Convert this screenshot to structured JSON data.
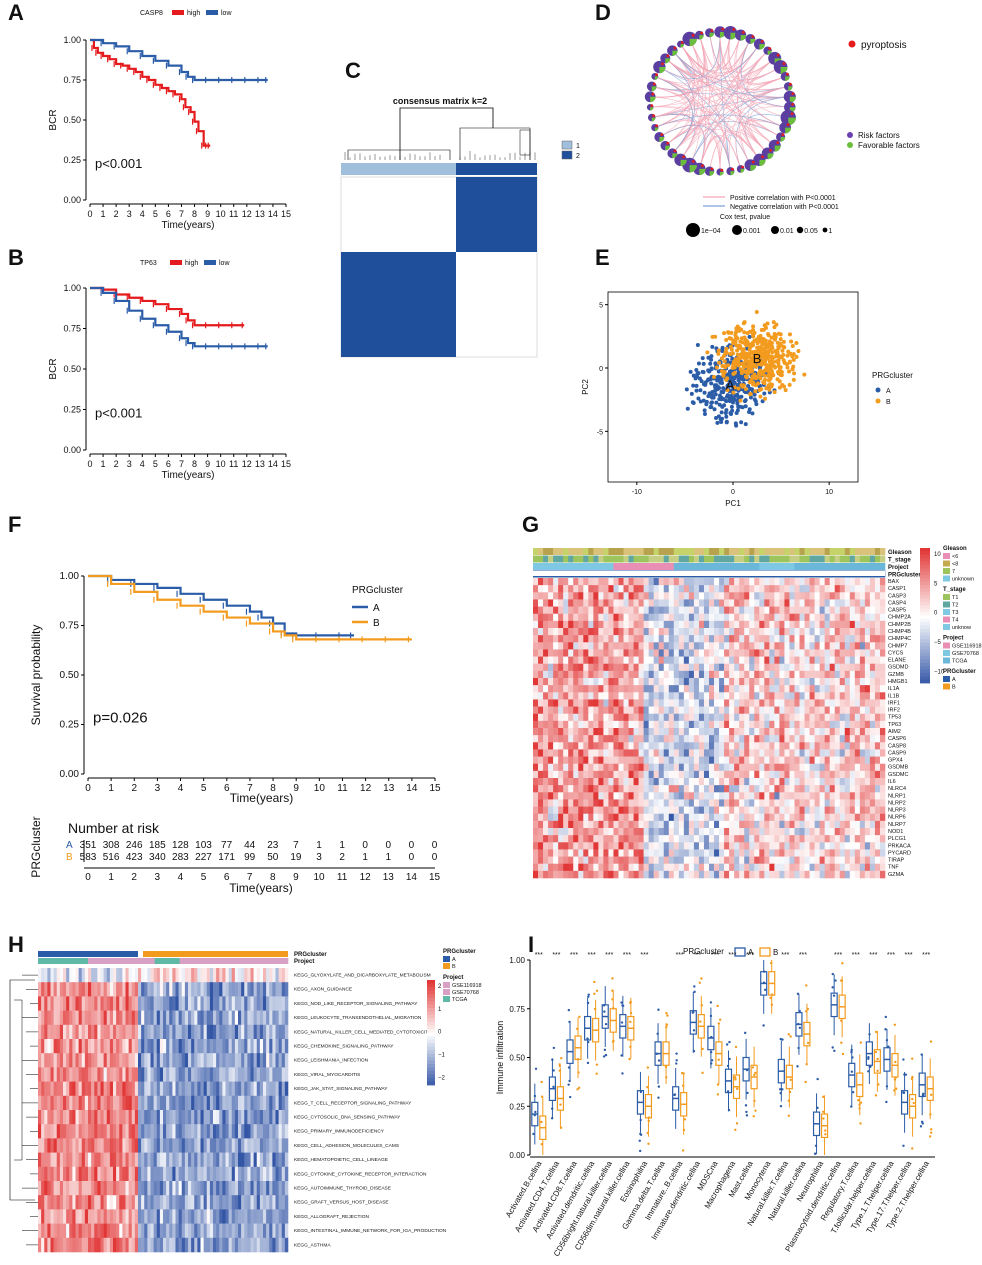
{
  "panel_labels": {
    "A": "A",
    "B": "B",
    "C": "C",
    "D": "D",
    "E": "E",
    "F": "F",
    "G": "G",
    "H": "H",
    "I": "I"
  },
  "colors": {
    "red": "#e41a1c",
    "blue": "#2b5ca8",
    "orange": "#f39b1e",
    "lightblue": "#9fbfdc",
    "darkblue": "#1f4e9b"
  },
  "chart_data": [
    {
      "id": "A",
      "type": "line",
      "title": "",
      "legend_title": "CASP8",
      "legend": [
        "high",
        "low"
      ],
      "xlabel": "Time(years)",
      "ylabel": "BCR",
      "xticks": [
        "0",
        "1",
        "2",
        "3",
        "4",
        "5",
        "6",
        "7",
        "8",
        "9",
        "10",
        "11",
        "12",
        "13",
        "14",
        "15"
      ],
      "yticks": [
        "0.00",
        "0.25",
        "0.50",
        "0.75",
        "1.00"
      ],
      "xlim": [
        0,
        15
      ],
      "ylim": [
        0,
        1
      ],
      "annotation": "p<0.001",
      "series": [
        {
          "name": "high",
          "x": [
            0,
            0.3,
            0.6,
            1,
            1.5,
            2,
            2.5,
            3,
            3.5,
            4,
            4.5,
            5,
            5.5,
            6,
            6.5,
            7,
            7.3,
            7.7,
            8,
            8.3,
            8.7,
            9,
            9.2
          ],
          "y": [
            1,
            0.95,
            0.92,
            0.9,
            0.88,
            0.85,
            0.84,
            0.82,
            0.8,
            0.77,
            0.75,
            0.72,
            0.7,
            0.68,
            0.66,
            0.63,
            0.58,
            0.55,
            0.49,
            0.43,
            0.34,
            0.34,
            0.34
          ]
        },
        {
          "name": "low",
          "x": [
            0,
            1,
            2,
            3,
            4,
            5,
            6,
            7,
            7.5,
            8,
            9,
            10,
            11,
            12,
            13,
            13.6
          ],
          "y": [
            1,
            0.98,
            0.96,
            0.93,
            0.9,
            0.87,
            0.84,
            0.8,
            0.77,
            0.75,
            0.75,
            0.75,
            0.75,
            0.75,
            0.75,
            0.75
          ]
        }
      ]
    },
    {
      "id": "B",
      "type": "line",
      "title": "",
      "legend_title": "TP63",
      "legend": [
        "high",
        "low"
      ],
      "xlabel": "Time(years)",
      "ylabel": "BCR",
      "xticks": [
        "0",
        "1",
        "2",
        "3",
        "4",
        "5",
        "6",
        "7",
        "8",
        "9",
        "10",
        "11",
        "12",
        "13",
        "14",
        "15"
      ],
      "yticks": [
        "0.00",
        "0.25",
        "0.50",
        "0.75",
        "1.00"
      ],
      "xlim": [
        0,
        15
      ],
      "ylim": [
        0,
        1
      ],
      "annotation": "p<0.001",
      "series": [
        {
          "name": "high",
          "x": [
            0,
            1,
            2,
            3,
            4,
            5,
            6,
            7,
            7.5,
            8,
            9,
            10,
            11,
            11.8
          ],
          "y": [
            1,
            0.99,
            0.96,
            0.94,
            0.92,
            0.9,
            0.87,
            0.84,
            0.8,
            0.77,
            0.77,
            0.77,
            0.77,
            0.77
          ]
        },
        {
          "name": "low",
          "x": [
            0,
            1,
            2,
            3,
            4,
            5,
            6,
            7,
            7.5,
            8,
            9,
            10,
            11,
            12,
            13,
            13.6
          ],
          "y": [
            1,
            0.97,
            0.92,
            0.86,
            0.81,
            0.77,
            0.73,
            0.69,
            0.66,
            0.64,
            0.64,
            0.64,
            0.64,
            0.64,
            0.64,
            0.64
          ]
        }
      ]
    },
    {
      "id": "C",
      "type": "heatmap",
      "title": "consensus matrix k=2",
      "legend": [
        "1",
        "2"
      ]
    },
    {
      "id": "D",
      "type": "other",
      "legend": [
        "pyroptosis",
        "Risk factors",
        "Favorable factors",
        "Positive correlation with P<0.0001",
        "Negative correlation with P<0.0001"
      ],
      "size_legend_title": "Cox test, pvalue",
      "size_legend": [
        "1e−04",
        "0.001",
        "0.01",
        "0.05",
        "1"
      ]
    },
    {
      "id": "E",
      "type": "scatter",
      "xlabel": "PC1",
      "ylabel": "PC2",
      "xticks": [
        "-10",
        "0",
        "10"
      ],
      "yticks": [
        "-5",
        "0",
        "5"
      ],
      "xlim": [
        -13,
        13
      ],
      "ylim": [
        -9,
        6
      ],
      "legend_title": "PRGcluster",
      "legend": [
        "A",
        "B"
      ],
      "centroids": [
        {
          "label": "A",
          "x": -0.3,
          "y": -1.3
        },
        {
          "label": "B",
          "x": 2.5,
          "y": 0.8
        }
      ]
    },
    {
      "id": "F",
      "type": "line",
      "xlabel": "Time(years)",
      "ylabel": "Survival probability",
      "xticks": [
        "0",
        "1",
        "2",
        "3",
        "4",
        "5",
        "6",
        "7",
        "8",
        "9",
        "10",
        "11",
        "12",
        "13",
        "14",
        "15"
      ],
      "yticks": [
        "0.00",
        "0.25",
        "0.50",
        "0.75",
        "1.00"
      ],
      "xlim": [
        0,
        15
      ],
      "ylim": [
        0,
        1
      ],
      "legend_title": "PRGcluster",
      "legend": [
        "A",
        "B"
      ],
      "annotation": "p=0.026",
      "series": [
        {
          "name": "A",
          "x": [
            0,
            1,
            2,
            3,
            4,
            5,
            6,
            7,
            7.5,
            8,
            8.5,
            9,
            10,
            11,
            11.5
          ],
          "y": [
            1,
            0.98,
            0.96,
            0.94,
            0.91,
            0.88,
            0.85,
            0.82,
            0.79,
            0.76,
            0.71,
            0.7,
            0.7,
            0.7,
            0.7
          ]
        },
        {
          "name": "B",
          "x": [
            0,
            1,
            2,
            3,
            4,
            5,
            6,
            7,
            8,
            8.5,
            9,
            10,
            11,
            12,
            13,
            14
          ],
          "y": [
            1,
            0.96,
            0.92,
            0.88,
            0.85,
            0.82,
            0.79,
            0.76,
            0.72,
            0.7,
            0.68,
            0.68,
            0.68,
            0.68,
            0.68,
            0.68
          ]
        }
      ],
      "risk_table": {
        "title": "Number at risk",
        "ylabel": "PRGcluster",
        "rows": [
          {
            "label": "A",
            "values": [
              "351",
              "308",
              "246",
              "185",
              "128",
              "103",
              "77",
              "44",
              "23",
              "7",
              "1",
              "1",
              "0",
              "0",
              "0",
              "0"
            ]
          },
          {
            "label": "B",
            "values": [
              "583",
              "516",
              "423",
              "340",
              "283",
              "227",
              "171",
              "99",
              "50",
              "19",
              "3",
              "2",
              "1",
              "1",
              "0",
              "0"
            ]
          }
        ]
      }
    },
    {
      "id": "G",
      "type": "heatmap",
      "annotation_rows": [
        "Gleason",
        "T_stage",
        "Project",
        "PRGcluster"
      ],
      "genes": [
        "BAX",
        "CASP1",
        "CASP3",
        "CASP4",
        "CASP5",
        "CHMP2A",
        "CHMP2B",
        "CHMP4B",
        "CHMP4C",
        "CHMP7",
        "CYCS",
        "ELANE",
        "GSDMD",
        "GZMB",
        "HMGB1",
        "IL1A",
        "IL1B",
        "IRF1",
        "IRF2",
        "TP53",
        "TP63",
        "AIM2",
        "CASP6",
        "CASP8",
        "CASP9",
        "GPX4",
        "GSDMB",
        "GSDMC",
        "IL6",
        "NLRC4",
        "NLRP1",
        "NLRP2",
        "NLRP3",
        "NLRP6",
        "NLRP7",
        "NOD1",
        "PLCG1",
        "PRKACA",
        "PYCARD",
        "TIRAP",
        "TNF",
        "GZMA"
      ],
      "colorbar_ticks": [
        "10",
        "5",
        "0",
        "−5",
        "−10"
      ],
      "legends": [
        {
          "title": "Gleason",
          "items": [
            "<6",
            "<8",
            "7",
            "unknown"
          ]
        },
        {
          "title": "T_stage",
          "items": [
            "T1",
            "T2",
            "T3",
            "T4",
            "unknow"
          ]
        },
        {
          "title": "Project",
          "items": [
            "GSE116918",
            "GSE70768",
            "TCGA"
          ]
        },
        {
          "title": "PRGcluster",
          "items": [
            "A",
            "B"
          ]
        }
      ]
    },
    {
      "id": "H",
      "type": "heatmap",
      "annotation_rows": [
        "PRGcluster",
        "Project"
      ],
      "pathways": [
        "KEGG_GLYOXYLATE_AND_DICARBOXYLATE_METABOLISM",
        "KEGG_AXON_GUIDANCE",
        "KEGG_NOD_LIKE_RECEPTOR_SIGNALING_PATHWAY",
        "KEGG_LEUKOCYTE_TRANSENDOTHELIAL_MIGRATION",
        "KEGG_NATURAL_KILLER_CELL_MEDIATED_CYTOTOXICITY",
        "KEGG_CHEMOKINE_SIGNALING_PATHWAY",
        "KEGG_LEISHMANIA_INFECTION",
        "KEGG_VIRAL_MYOCARDITIS",
        "KEGG_JAK_STAT_SIGNALING_PATHWAY",
        "KEGG_T_CELL_RECEPTOR_SIGNALING_PATHWAY",
        "KEGG_CYTOSOLIC_DNA_SENSING_PATHWAY",
        "KEGG_PRIMARY_IMMUNODEFICIENCY",
        "KEGG_CELL_ADHESION_MOLECULES_CAMS",
        "KEGG_HEMATOPOIETIC_CELL_LINEAGE",
        "KEGG_CYTOKINE_CYTOKINE_RECEPTOR_INTERACTION",
        "KEGG_AUTOIMMUNE_THYROID_DISEASE",
        "KEGG_GRAFT_VERSUS_HOST_DISEASE",
        "KEGG_ALLOGRAFT_REJECTION",
        "KEGG_INTESTINAL_IMMUNE_NETWORK_FOR_IGA_PRODUCTION",
        "KEGG_ASTHMA"
      ],
      "colorbar_ticks": [
        "2",
        "1",
        "0",
        "−1",
        "−2"
      ],
      "legends": [
        {
          "title": "PRGcluster",
          "items": [
            "A",
            "B"
          ]
        },
        {
          "title": "Project",
          "items": [
            "GSE116918",
            "GSE70768",
            "TCGA"
          ]
        }
      ]
    },
    {
      "id": "I",
      "type": "bar",
      "subtype": "boxplot",
      "legend_title": "PRGcluster",
      "legend": [
        "A",
        "B"
      ],
      "ylabel": "Immune infiltration",
      "yticks": [
        "0.00",
        "0.25",
        "0.50",
        "0.75",
        "1.00"
      ],
      "ylim": [
        0,
        1
      ],
      "categories": [
        "Activated.B.cellna",
        "Activated.CD4.T.cellna",
        "Activated.CD8.T.cellna",
        "Activated.dendritic.cellna",
        "CD56bright.natural.killer.cellna",
        "CD56dim.natural.killer.cellna",
        "Eosinophilna",
        "Gamma.delta.T.cellna",
        "Immature..B.cellna",
        "Immature.dendritic.cellna",
        "MDSCna",
        "Macrophagena",
        "Mast.cellna",
        "Monocytena",
        "Natural.killer.T.cellna",
        "Natural.killer.cellna",
        "Neutrophilna",
        "Plasmacytoid.dendritic.cellna",
        "Regulatory.T.cellna",
        "T.follicular.helper.cellna",
        "Type.1.T.helper.cellna",
        "Type.17.T.helper.cellna",
        "Type.2.T.helper.cellna"
      ],
      "significance": [
        "***",
        "***",
        "***",
        "***",
        "***",
        "***",
        "***",
        "",
        "***",
        "***",
        "***",
        "***",
        "***",
        "",
        "***",
        "***",
        "",
        "***",
        "***",
        "***",
        "***",
        "***",
        "***"
      ],
      "series": [
        {
          "name": "A",
          "values": [
            0.21,
            0.34,
            0.53,
            0.65,
            0.71,
            0.66,
            0.27,
            0.52,
            0.29,
            0.68,
            0.6,
            0.38,
            0.44,
            0.88,
            0.43,
            0.67,
            0.16,
            0.77,
            0.41,
            0.52,
            0.49,
            0.27,
            0.36
          ]
        },
        {
          "name": "B",
          "values": [
            0.14,
            0.29,
            0.55,
            0.64,
            0.69,
            0.65,
            0.25,
            0.52,
            0.26,
            0.66,
            0.52,
            0.35,
            0.4,
            0.88,
            0.4,
            0.62,
            0.15,
            0.76,
            0.36,
            0.48,
            0.46,
            0.25,
            0.34
          ]
        }
      ]
    }
  ]
}
